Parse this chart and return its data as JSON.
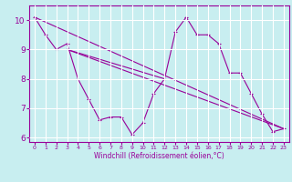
{
  "title": "",
  "xlabel": "Windchill (Refroidissement éolien,°C)",
  "ylabel": "",
  "bg_color": "#c8eef0",
  "line_color": "#990099",
  "grid_color": "#ffffff",
  "xlim": [
    -0.5,
    23.5
  ],
  "ylim": [
    5.85,
    10.5
  ],
  "yticks": [
    6,
    7,
    8,
    9,
    10
  ],
  "xticks": [
    0,
    1,
    2,
    3,
    4,
    5,
    6,
    7,
    8,
    9,
    10,
    11,
    12,
    13,
    14,
    15,
    16,
    17,
    18,
    19,
    20,
    21,
    22,
    23
  ],
  "series": [
    [
      0,
      10.1
    ],
    [
      1,
      9.5
    ],
    [
      2,
      9.0
    ],
    [
      3,
      9.2
    ],
    [
      4,
      8.0
    ],
    [
      5,
      7.3
    ],
    [
      6,
      6.6
    ],
    [
      7,
      6.7
    ],
    [
      8,
      6.7
    ],
    [
      9,
      6.1
    ],
    [
      10,
      6.5
    ],
    [
      11,
      7.5
    ],
    [
      12,
      8.0
    ],
    [
      13,
      9.6
    ],
    [
      14,
      10.1
    ],
    [
      15,
      9.5
    ],
    [
      16,
      9.5
    ],
    [
      17,
      9.2
    ],
    [
      18,
      8.2
    ],
    [
      19,
      8.2
    ],
    [
      20,
      7.5
    ],
    [
      21,
      6.8
    ],
    [
      22,
      6.2
    ],
    [
      23,
      6.3
    ]
  ],
  "line1": [
    [
      0,
      10.1
    ],
    [
      23,
      6.3
    ]
  ],
  "line2": [
    [
      3,
      9.0
    ],
    [
      23,
      6.3
    ]
  ],
  "line3": [
    [
      3,
      9.0
    ],
    [
      12,
      8.0
    ]
  ]
}
